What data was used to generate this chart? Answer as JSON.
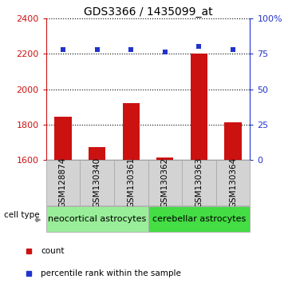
{
  "title": "GDS3366 / 1435099_at",
  "samples": [
    "GSM128874",
    "GSM130340",
    "GSM130361",
    "GSM130362",
    "GSM130363",
    "GSM130364"
  ],
  "counts": [
    1845,
    1672,
    1920,
    1615,
    2200,
    1812
  ],
  "percentiles": [
    78,
    78,
    78,
    76,
    80,
    78
  ],
  "ylim_left": [
    1600,
    2400
  ],
  "ylim_right": [
    0,
    100
  ],
  "yticks_left": [
    1600,
    1800,
    2000,
    2200,
    2400
  ],
  "yticks_right": [
    0,
    25,
    50,
    75,
    100
  ],
  "yticklabels_right": [
    "0",
    "25",
    "50",
    "75",
    "100%"
  ],
  "bar_color": "#cc1111",
  "dot_color": "#2233cc",
  "groups": [
    {
      "label": "neocortical astrocytes",
      "indices": [
        0,
        1,
        2
      ],
      "color": "#99ee99"
    },
    {
      "label": "cerebellar astrocytes",
      "indices": [
        3,
        4,
        5
      ],
      "color": "#44dd44"
    }
  ],
  "cell_type_label": "cell type",
  "legend_items": [
    {
      "label": "count",
      "color": "#cc1111"
    },
    {
      "label": "percentile rank within the sample",
      "color": "#2233cc"
    }
  ],
  "bar_width": 0.5,
  "base_value": 1600,
  "bg_color": "#ffffff",
  "box_color": "#d3d3d3",
  "title_fontsize": 10,
  "tick_fontsize": 8,
  "label_fontsize": 7.5,
  "legend_fontsize": 7.5
}
